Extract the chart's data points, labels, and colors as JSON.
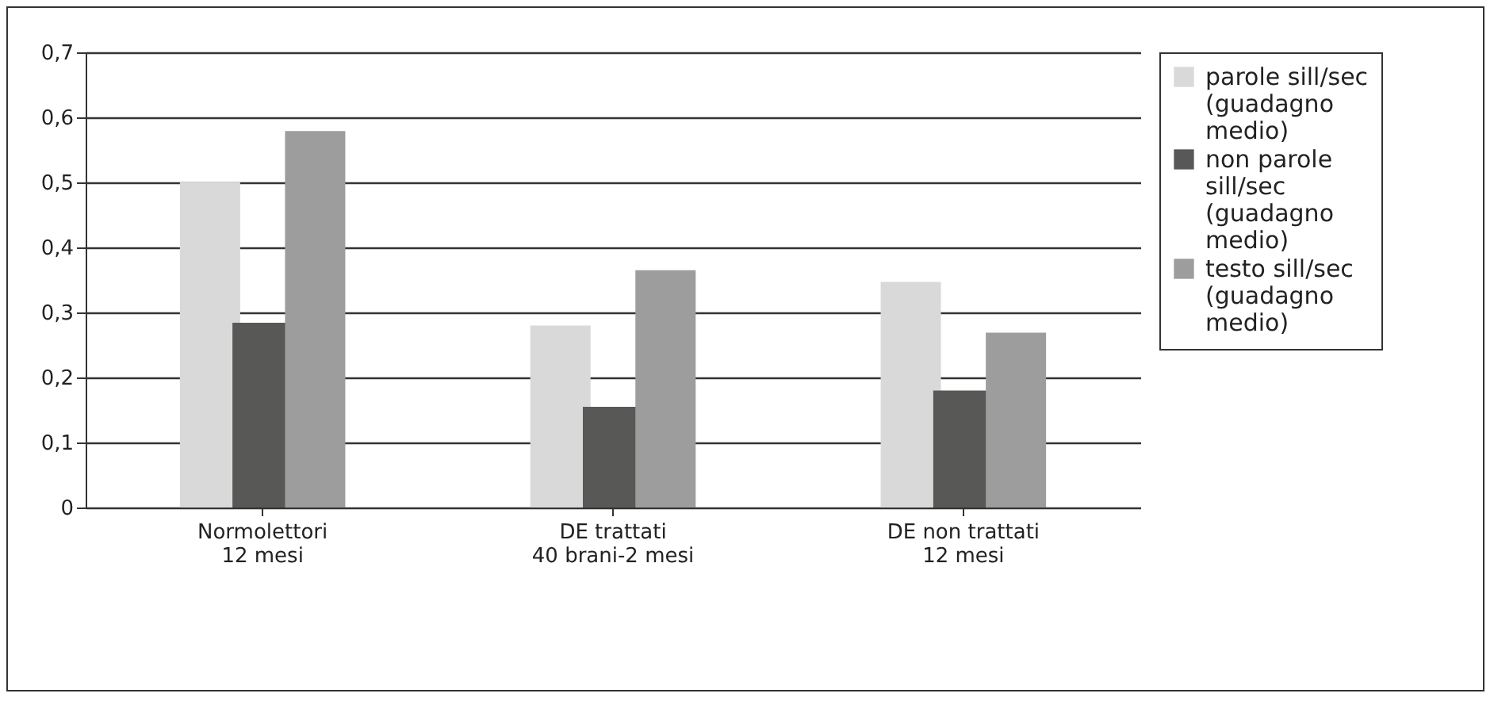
{
  "chart_data": {
    "type": "bar",
    "categories": [
      "Normolettori\n12 mesi",
      "DE trattati\n40 brani-2 mesi",
      "DE non trattati\n12 mesi"
    ],
    "series": [
      {
        "name": "parole sill/sec (guadagno medio)",
        "color": "#d9d9d9",
        "values": [
          0.5,
          0.28,
          0.347
        ]
      },
      {
        "name": "non parole sill/sec (guadagno medio)",
        "color": "#585856",
        "values": [
          0.284,
          0.155,
          0.18
        ]
      },
      {
        "name": "testo sill/sec (guadagno medio)",
        "color": "#9c9d9c",
        "values": [
          0.579,
          0.365,
          0.269
        ]
      }
    ],
    "ylim": [
      0,
      0.7
    ],
    "yticks": [
      {
        "value": 0,
        "label": "0"
      },
      {
        "value": 0.1,
        "label": "0,1"
      },
      {
        "value": 0.2,
        "label": "0,2"
      },
      {
        "value": 0.3,
        "label": "0,3"
      },
      {
        "value": 0.4,
        "label": "0,4"
      },
      {
        "value": 0.5,
        "label": "0,5"
      },
      {
        "value": 0.6,
        "label": "0,6"
      },
      {
        "value": 0.7,
        "label": "0,7"
      }
    ],
    "grid": "y",
    "legend": "right"
  }
}
